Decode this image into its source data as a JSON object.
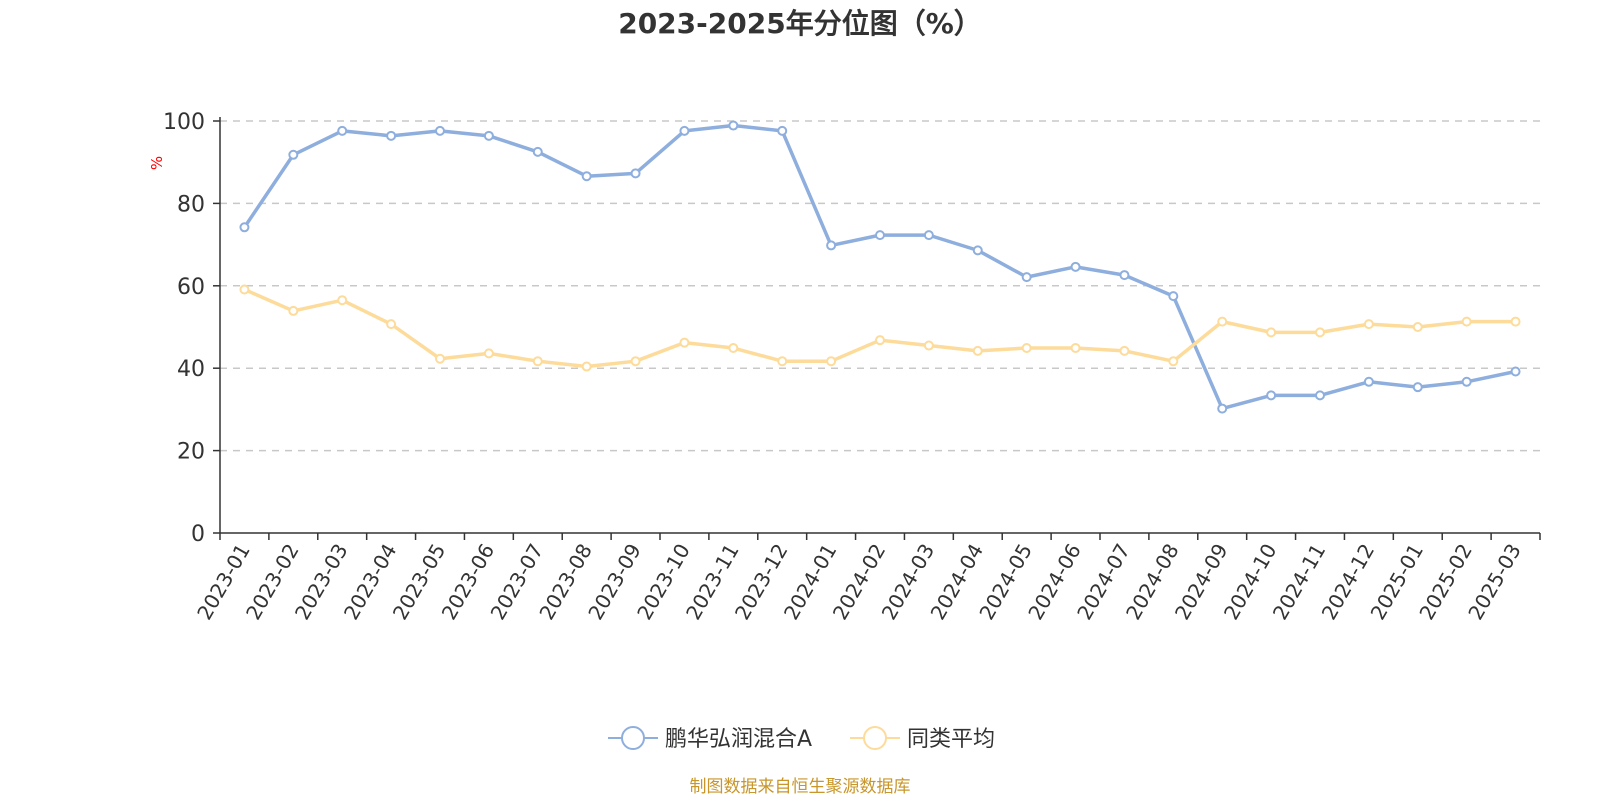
{
  "colors": {
    "series1": "#8eaede",
    "series2": "#fddb9a",
    "grid": "#c8c8c8",
    "axis": "#333333",
    "unit": "#ff0000",
    "source": "#c8962a"
  },
  "chart_data": {
    "type": "line",
    "title": "2023-2025年分位图（%）",
    "ylabel": "%",
    "ylim": [
      0,
      100
    ],
    "yticks": [
      0,
      20,
      40,
      60,
      80,
      100
    ],
    "grid": "horizontal-dashed",
    "legend_position": "bottom-center",
    "x": [
      "2023-01",
      "2023-02",
      "2023-03",
      "2023-04",
      "2023-05",
      "2023-06",
      "2023-07",
      "2023-08",
      "2023-09",
      "2023-10",
      "2023-11",
      "2023-12",
      "2024-01",
      "2024-02",
      "2024-03",
      "2024-04",
      "2024-05",
      "2024-06",
      "2024-07",
      "2024-08",
      "2024-09",
      "2024-10",
      "2024-11",
      "2024-12",
      "2025-01",
      "2025-02",
      "2025-03"
    ],
    "series": [
      {
        "name": "鹏华弘润混合A",
        "color": "#8eaede",
        "values": [
          74.2,
          91.8,
          97.6,
          96.4,
          97.6,
          96.4,
          92.5,
          86.6,
          87.3,
          97.6,
          98.9,
          97.6,
          69.8,
          72.3,
          72.3,
          68.6,
          62.1,
          64.6,
          62.6,
          57.5,
          30.2,
          33.4,
          33.4,
          36.7,
          35.4,
          36.7,
          39.2
        ]
      },
      {
        "name": "同类平均",
        "color": "#fddb9a",
        "values": [
          59.1,
          53.9,
          56.5,
          50.7,
          42.3,
          43.6,
          41.7,
          40.4,
          41.7,
          46.2,
          44.9,
          41.7,
          41.7,
          46.8,
          45.5,
          44.2,
          44.9,
          44.9,
          44.2,
          41.7,
          51.3,
          48.7,
          48.7,
          50.7,
          50.0,
          51.3,
          51.3
        ]
      }
    ]
  },
  "footer": {
    "source": "制图数据来自恒生聚源数据库"
  }
}
